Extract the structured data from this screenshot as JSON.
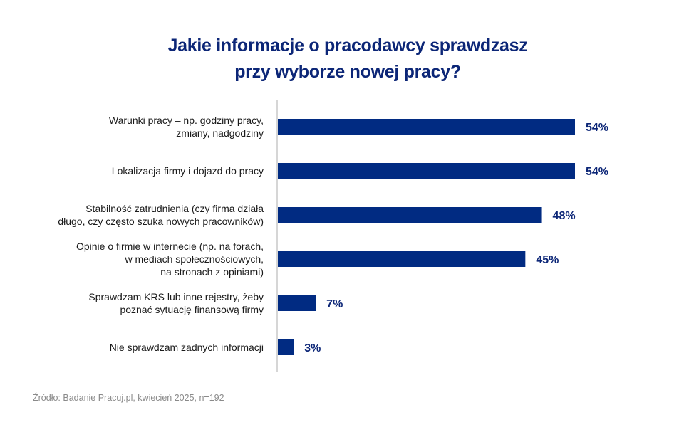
{
  "chart_data": {
    "type": "bar",
    "orientation": "horizontal",
    "title": [
      "Jakie informacje o pracodawcy sprawdzasz",
      "przy wyborze nowej pracy?"
    ],
    "categories": [
      [
        "Warunki pracy – np. godziny pracy,",
        "zmiany, nadgodziny"
      ],
      [
        "Lokalizacja firmy i dojazd do pracy"
      ],
      [
        "Stabilność zatrudnienia (czy firma działa",
        "długo, czy często szuka nowych pracowników)"
      ],
      [
        "Opinie o firmie w internecie (np. na forach,",
        "w mediach społecznościowych,",
        "na stronach z opiniami)"
      ],
      [
        "Sprawdzam KRS lub inne rejestry, żeby",
        "poznać sytuację finansową firmy"
      ],
      [
        "Nie sprawdzam żadnych informacji"
      ]
    ],
    "values": [
      54,
      54,
      48,
      45,
      7,
      3
    ],
    "data_labels": [
      "54%",
      "54%",
      "48%",
      "45%",
      "7%",
      "3%"
    ],
    "unit": "%",
    "xlim": [
      0,
      54
    ],
    "grid": false,
    "colors": {
      "bar": "#012b82",
      "title": "#0c2677",
      "label": "#0c2677",
      "axis": "#d6d6d6"
    }
  },
  "source": "Źródło: Badanie Pracuj.pl, kwiecień 2025, n=192"
}
